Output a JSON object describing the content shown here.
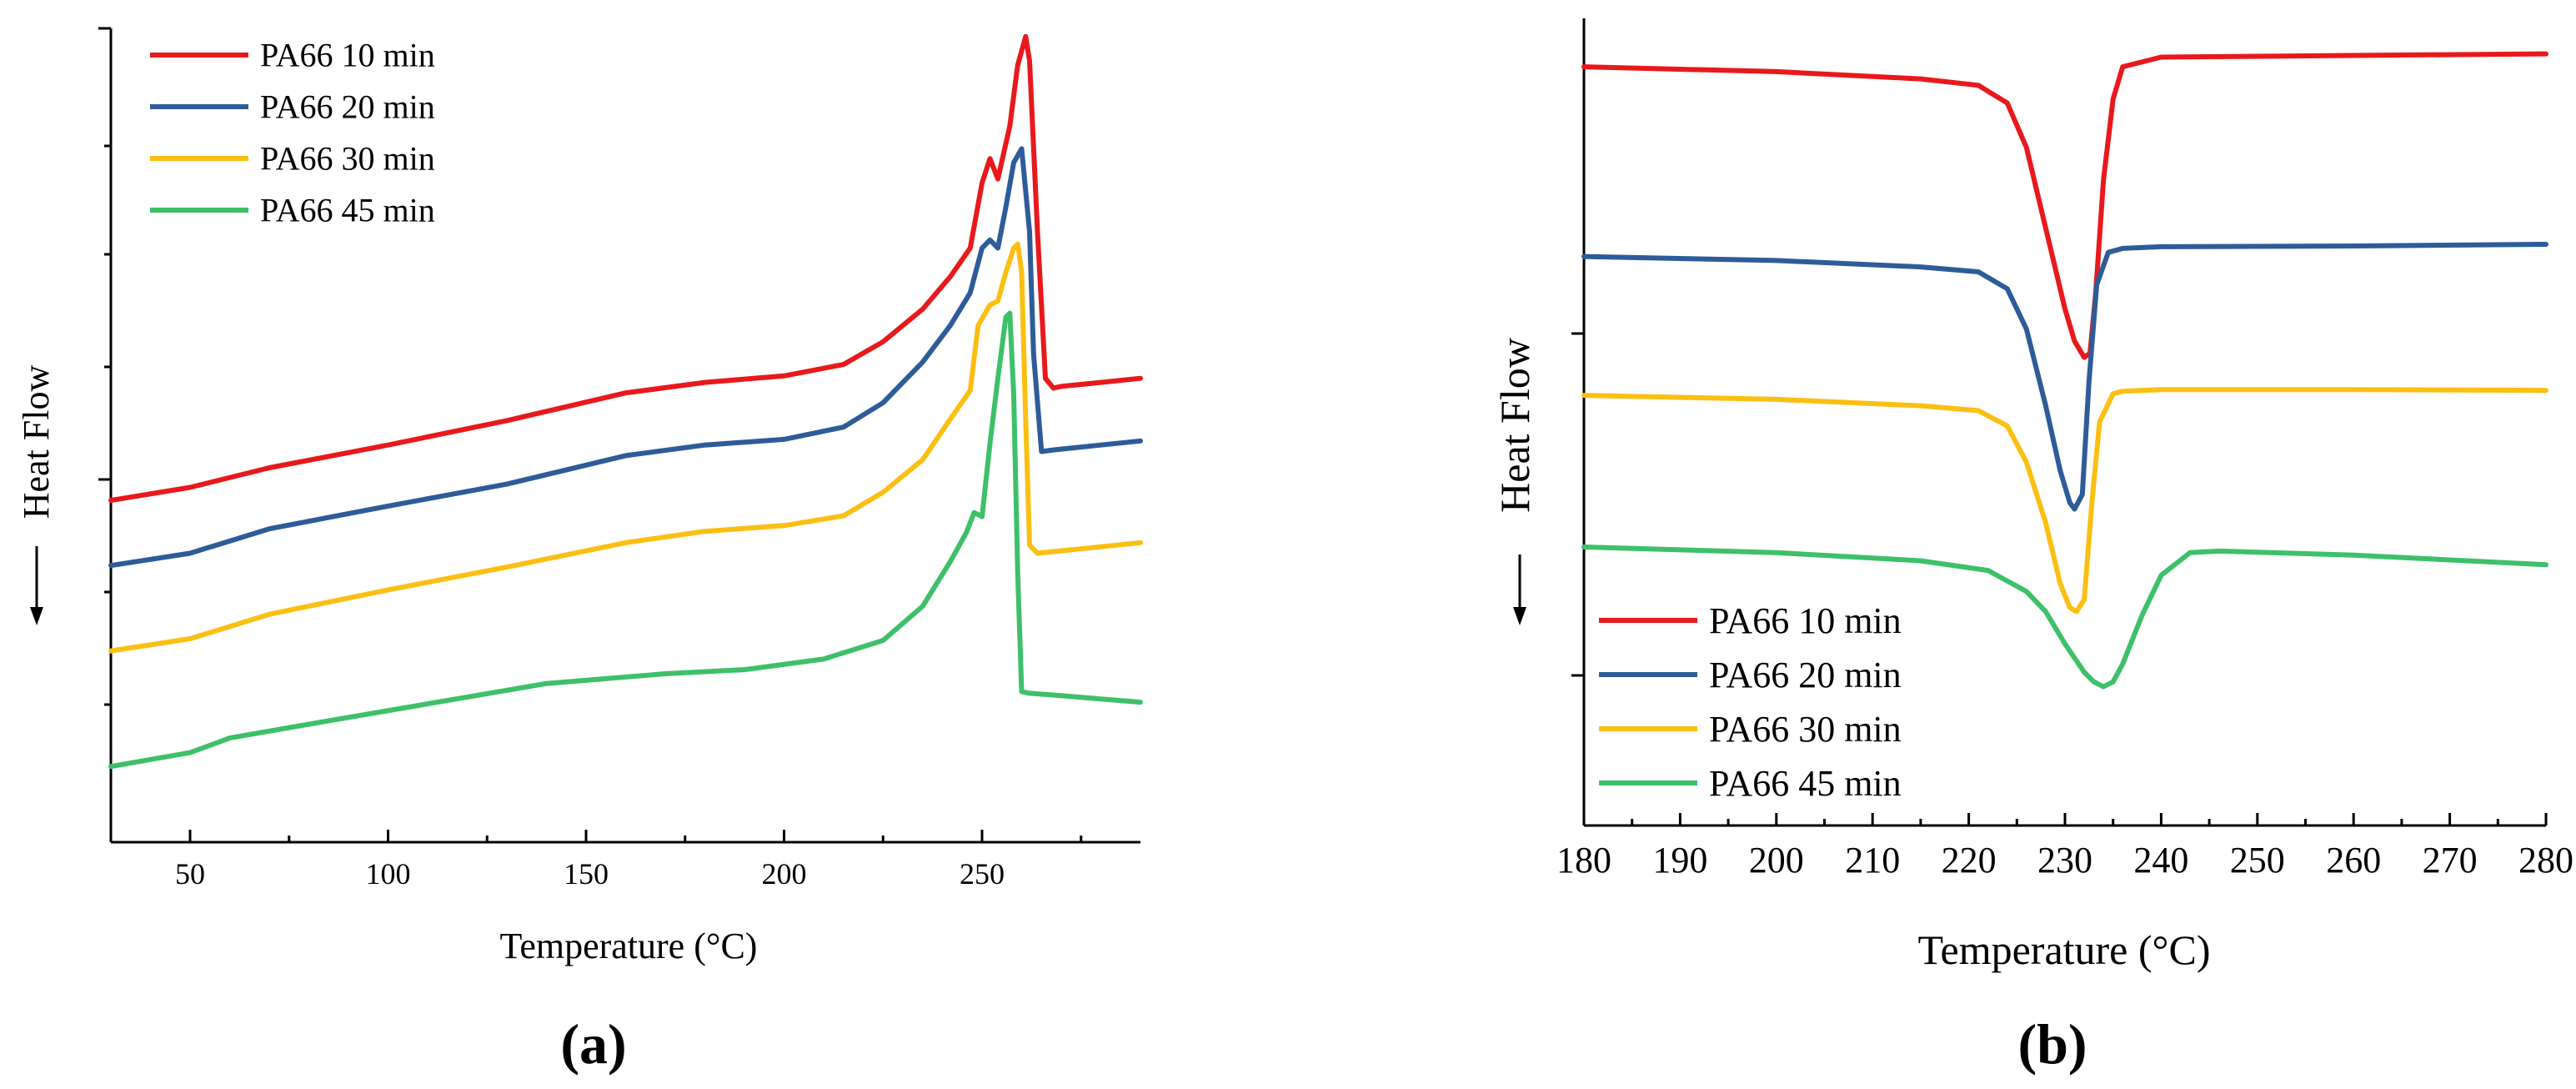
{
  "chart_data": [
    {
      "type": "line",
      "panel_label": "(a)",
      "xlabel": "Temperature (°C)",
      "ylabel": "Heat Flow",
      "xlim": [
        30,
        290
      ],
      "ylim": [
        0,
        100
      ],
      "xticks": [
        50,
        100,
        150,
        200,
        250
      ],
      "tick_labels": [
        "50",
        "100",
        "150",
        "200",
        "250"
      ],
      "legend_position": "top-left",
      "series": [
        {
          "name": "PA66 10 min",
          "color": "#e8191c",
          "x": [
            30,
            50,
            70,
            100,
            130,
            160,
            180,
            200,
            215,
            225,
            235,
            242,
            247,
            250,
            252,
            254,
            257,
            259,
            261,
            262,
            264,
            266,
            268,
            270,
            280,
            290
          ],
          "y": [
            42.0,
            43.6,
            46.0,
            48.8,
            51.8,
            55.2,
            56.5,
            57.3,
            58.7,
            61.5,
            65.5,
            69.5,
            73.0,
            81.0,
            84.0,
            81.5,
            88.0,
            95.5,
            99.0,
            96.0,
            75.0,
            57.0,
            55.8,
            56.0,
            56.5,
            57.0
          ]
        },
        {
          "name": "PA66 20 min",
          "color": "#2e5c99",
          "x": [
            30,
            50,
            70,
            100,
            130,
            160,
            180,
            200,
            215,
            225,
            235,
            242,
            247,
            250,
            252,
            254,
            256,
            258,
            260,
            262,
            263,
            265,
            268,
            280,
            290
          ],
          "y": [
            34.0,
            35.5,
            38.5,
            41.3,
            44.0,
            47.5,
            48.8,
            49.5,
            51.0,
            54.0,
            59.0,
            63.5,
            67.5,
            73.0,
            74.0,
            73.0,
            78.0,
            83.5,
            85.2,
            75.0,
            60.0,
            48.0,
            48.2,
            48.8,
            49.3
          ]
        },
        {
          "name": "PA66 30 min",
          "color": "#fbbf13",
          "x": [
            30,
            50,
            70,
            100,
            130,
            160,
            180,
            200,
            215,
            225,
            235,
            242,
            247,
            249,
            252,
            254,
            256,
            258,
            259,
            260,
            261,
            262,
            264,
            270,
            280,
            290
          ],
          "y": [
            23.5,
            25.0,
            28.0,
            31.0,
            33.8,
            36.8,
            38.2,
            38.9,
            40.1,
            43.0,
            47.0,
            52.0,
            55.5,
            63.5,
            66.0,
            66.5,
            70.0,
            73.0,
            73.5,
            70.0,
            52.0,
            36.5,
            35.5,
            35.8,
            36.3,
            36.8
          ]
        },
        {
          "name": "PA66 45 min",
          "color": "#3ec06a",
          "x": [
            30,
            50,
            60,
            80,
            110,
            140,
            170,
            190,
            210,
            225,
            235,
            242,
            246,
            248,
            250,
            252,
            254,
            256,
            257,
            258,
            259,
            260,
            262,
            270,
            280,
            290
          ],
          "y": [
            9.3,
            11.0,
            12.8,
            14.5,
            17.0,
            19.5,
            20.7,
            21.2,
            22.5,
            24.8,
            29.0,
            34.5,
            38.0,
            40.5,
            40.0,
            49.0,
            57.0,
            64.5,
            65.0,
            55.0,
            33.0,
            18.5,
            18.3,
            18.0,
            17.6,
            17.2
          ]
        }
      ]
    },
    {
      "type": "line",
      "panel_label": "(b)",
      "xlabel": "Temperature (°C)",
      "ylabel": "Heat Flow",
      "xlim": [
        180,
        280
      ],
      "ylim": [
        0,
        100
      ],
      "xticks": [
        180,
        190,
        200,
        210,
        220,
        230,
        240,
        250,
        260,
        270,
        280
      ],
      "tick_labels": [
        "180",
        "190",
        "200",
        "210",
        "220",
        "230",
        "240",
        "250",
        "260",
        "270",
        "280"
      ],
      "legend_position": "bottom-left",
      "series": [
        {
          "name": "PA66 10 min",
          "color": "#e8191c",
          "x": [
            180,
            200,
            215,
            221,
            224,
            226,
            228,
            230,
            231,
            232,
            232.6,
            233.2,
            234,
            235,
            236,
            240,
            260,
            280
          ],
          "y": [
            94.0,
            93.4,
            92.5,
            91.7,
            89.5,
            84.0,
            74.0,
            64.0,
            60.0,
            58.0,
            58.5,
            66.0,
            80.0,
            90.0,
            94.0,
            95.2,
            95.4,
            95.6
          ]
        },
        {
          "name": "PA66 20 min",
          "color": "#2e5c99",
          "x": [
            180,
            200,
            215,
            221,
            224,
            226,
            228,
            229.5,
            230.5,
            231,
            231.8,
            232.5,
            233.3,
            234.5,
            236,
            240,
            260,
            280
          ],
          "y": [
            70.5,
            70.0,
            69.2,
            68.6,
            66.5,
            61.5,
            52.0,
            44.0,
            40.0,
            39.2,
            41.0,
            55.0,
            67.0,
            71.0,
            71.5,
            71.7,
            71.8,
            72.0
          ]
        },
        {
          "name": "PA66 30 min",
          "color": "#fbbf13",
          "x": [
            180,
            200,
            215,
            221,
            224,
            226,
            228,
            229.5,
            230.5,
            231.2,
            232,
            232.8,
            233.6,
            235,
            236,
            240,
            260,
            280
          ],
          "y": [
            53.3,
            52.8,
            52.0,
            51.4,
            49.5,
            45.0,
            37.5,
            30.0,
            27.0,
            26.5,
            28.0,
            40.0,
            50.0,
            53.5,
            53.8,
            54.0,
            54.0,
            53.9
          ]
        },
        {
          "name": "PA66 45 min",
          "color": "#3ec06a",
          "x": [
            180,
            200,
            215,
            222,
            226,
            228,
            230,
            232,
            233,
            234,
            235,
            236,
            238,
            240,
            243,
            246,
            260,
            280
          ],
          "y": [
            34.5,
            33.8,
            32.8,
            31.6,
            29.0,
            26.5,
            22.5,
            19.0,
            17.8,
            17.2,
            17.8,
            20.0,
            26.0,
            31.0,
            33.8,
            34.0,
            33.5,
            32.3
          ]
        }
      ]
    }
  ]
}
